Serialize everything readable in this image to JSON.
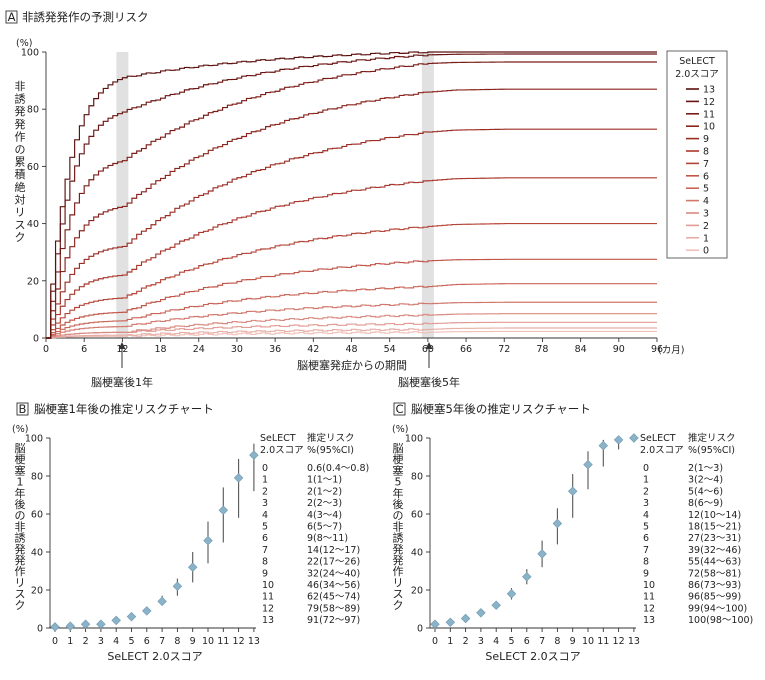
{
  "panel_a": {
    "letter": "A",
    "title": "非誘発発作の予測リスク",
    "unit": "(%)",
    "ylabel": "非誘発発作の累積絶対リスク",
    "xlabel": "脳梗塞発症からの期間",
    "xunit": "(カ月)",
    "arrow_1y": "脳梗塞後1年",
    "arrow_5y": "脳梗塞後5年",
    "legend_title_1": "SeLECT",
    "legend_title_2": "2.0スコア",
    "x_ticks": [
      "0",
      "6",
      "12",
      "18",
      "24",
      "30",
      "36",
      "42",
      "48",
      "54",
      "60",
      "66",
      "72",
      "78",
      "84",
      "90",
      "96"
    ],
    "y_ticks": [
      "0",
      "20",
      "40",
      "60",
      "80",
      "100"
    ]
  },
  "panel_b": {
    "letter": "B",
    "title": "脳梗塞1年後の推定リスクチャート",
    "unit": "(%)",
    "ylabel": "脳梗塞1年後の非誘発発作リスク",
    "xlabel": "SeLECT 2.0スコア",
    "head_score_1": "SeLECT",
    "head_score_2": "2.0スコア",
    "head_risk_1": "推定リスク",
    "head_risk_2": "%(95%CI)",
    "rows": [
      "0.6(0.4〜0.8)",
      "1(1〜1)",
      "2(1〜2)",
      "2(2〜3)",
      "4(3〜4)",
      "6(5〜7)",
      "9(8〜11)",
      "14(12〜17)",
      "22(17〜26)",
      "32(24〜40)",
      "46(34〜56)",
      "62(45〜74)",
      "79(58〜89)",
      "91(72〜97)"
    ]
  },
  "panel_c": {
    "letter": "C",
    "title": "脳梗塞5年後の推定リスクチャート",
    "unit": "(%)",
    "ylabel": "脳梗塞5年後の非誘発発作リスク",
    "xlabel": "SeLECT 2.0スコア",
    "head_score_1": "SeLECT",
    "head_score_2": "2.0スコア",
    "head_risk_1": "推定リスク",
    "head_risk_2": "%(95%CI)",
    "rows": [
      "2(1〜3)",
      "3(2〜4)",
      "5(4〜6)",
      "8(6〜9)",
      "12(10〜14)",
      "18(15〜21)",
      "27(23〜31)",
      "39(32〜46)",
      "55(44〜63)",
      "72(58〜81)",
      "86(73〜93)",
      "96(85〜99)",
      "99(94〜100)",
      "100(98〜100)"
    ]
  },
  "chart_data": [
    {
      "type": "line",
      "title": "非誘発発作の予測リスク",
      "xlabel": "脳梗塞発症からの期間",
      "ylabel": "非誘発発作の累積絶対リスク",
      "xlim": [
        0,
        96
      ],
      "ylim": [
        0,
        100
      ],
      "x_ticks": [
        0,
        6,
        12,
        18,
        24,
        30,
        36,
        42,
        48,
        54,
        60,
        66,
        72,
        78,
        84,
        90,
        96
      ],
      "y_ticks": [
        0,
        20,
        40,
        60,
        80,
        100
      ],
      "highlight_months": [
        12,
        60
      ],
      "legend_title": "SeLECT 2.0スコア",
      "legend_position": "right",
      "colors": [
        "#f0c0b9",
        "#e8aea6",
        "#e19c93",
        "#d98a80",
        "#d1786d",
        "#c9665a",
        "#c05548",
        "#b54538",
        "#a8382d",
        "#9a2d24",
        "#8a241d",
        "#7a1c17",
        "#6a1512",
        "#5a100e"
      ],
      "series": [
        {
          "name": "0",
          "x": [
            0,
            12,
            60,
            96
          ],
          "y": [
            0,
            0.6,
            2,
            2.3
          ]
        },
        {
          "name": "1",
          "x": [
            0,
            12,
            60,
            96
          ],
          "y": [
            0,
            1,
            3,
            3.5
          ]
        },
        {
          "name": "2",
          "x": [
            0,
            12,
            60,
            96
          ],
          "y": [
            0,
            2,
            5,
            5.5
          ]
        },
        {
          "name": "3",
          "x": [
            0,
            12,
            60,
            96
          ],
          "y": [
            0,
            2,
            8,
            8.5
          ]
        },
        {
          "name": "4",
          "x": [
            0,
            12,
            60,
            96
          ],
          "y": [
            0,
            4,
            12,
            12.5
          ]
        },
        {
          "name": "5",
          "x": [
            0,
            12,
            60,
            96
          ],
          "y": [
            0,
            6,
            18,
            19
          ]
        },
        {
          "name": "6",
          "x": [
            0,
            12,
            60,
            96
          ],
          "y": [
            0,
            9,
            27,
            27.5
          ]
        },
        {
          "name": "7",
          "x": [
            0,
            12,
            60,
            96
          ],
          "y": [
            0,
            14,
            39,
            40
          ]
        },
        {
          "name": "8",
          "x": [
            0,
            12,
            60,
            96
          ],
          "y": [
            0,
            22,
            55,
            56
          ]
        },
        {
          "name": "9",
          "x": [
            0,
            12,
            60,
            96
          ],
          "y": [
            0,
            32,
            72,
            73
          ]
        },
        {
          "name": "10",
          "x": [
            0,
            12,
            60,
            96
          ],
          "y": [
            0,
            46,
            86,
            87
          ]
        },
        {
          "name": "11",
          "x": [
            0,
            12,
            60,
            96
          ],
          "y": [
            0,
            62,
            96,
            96.5
          ]
        },
        {
          "name": "12",
          "x": [
            0,
            12,
            60,
            96
          ],
          "y": [
            0,
            79,
            99,
            99.3
          ]
        },
        {
          "name": "13",
          "x": [
            0,
            12,
            60,
            96
          ],
          "y": [
            0,
            91,
            100,
            100
          ]
        }
      ]
    },
    {
      "type": "scatter",
      "title": "脳梗塞1年後の推定リスクチャート",
      "xlabel": "SeLECT 2.0スコア",
      "ylabel": "脳梗塞1年後の非誘発発作リスク",
      "xlim": [
        0,
        13
      ],
      "ylim": [
        0,
        100
      ],
      "x": [
        0,
        1,
        2,
        3,
        4,
        5,
        6,
        7,
        8,
        9,
        10,
        11,
        12,
        13
      ],
      "y": [
        0.6,
        1,
        2,
        2,
        4,
        6,
        9,
        14,
        22,
        32,
        46,
        62,
        79,
        91
      ],
      "ci_low": [
        0.4,
        1,
        1,
        2,
        3,
        5,
        8,
        12,
        17,
        24,
        34,
        45,
        58,
        72
      ],
      "ci_high": [
        0.8,
        1,
        2,
        3,
        4,
        7,
        11,
        17,
        26,
        40,
        56,
        74,
        89,
        97
      ]
    },
    {
      "type": "scatter",
      "title": "脳梗塞5年後の推定リスクチャート",
      "xlabel": "SeLECT 2.0スコア",
      "ylabel": "脳梗塞5年後の非誘発発作リスク",
      "xlim": [
        0,
        13
      ],
      "ylim": [
        0,
        100
      ],
      "x": [
        0,
        1,
        2,
        3,
        4,
        5,
        6,
        7,
        8,
        9,
        10,
        11,
        12,
        13
      ],
      "y": [
        2,
        3,
        5,
        8,
        12,
        18,
        27,
        39,
        55,
        72,
        86,
        96,
        99,
        100
      ],
      "ci_low": [
        1,
        2,
        4,
        6,
        10,
        15,
        23,
        32,
        44,
        58,
        73,
        85,
        94,
        98
      ],
      "ci_high": [
        3,
        4,
        6,
        9,
        14,
        21,
        31,
        46,
        63,
        81,
        93,
        99,
        100,
        100
      ]
    }
  ]
}
